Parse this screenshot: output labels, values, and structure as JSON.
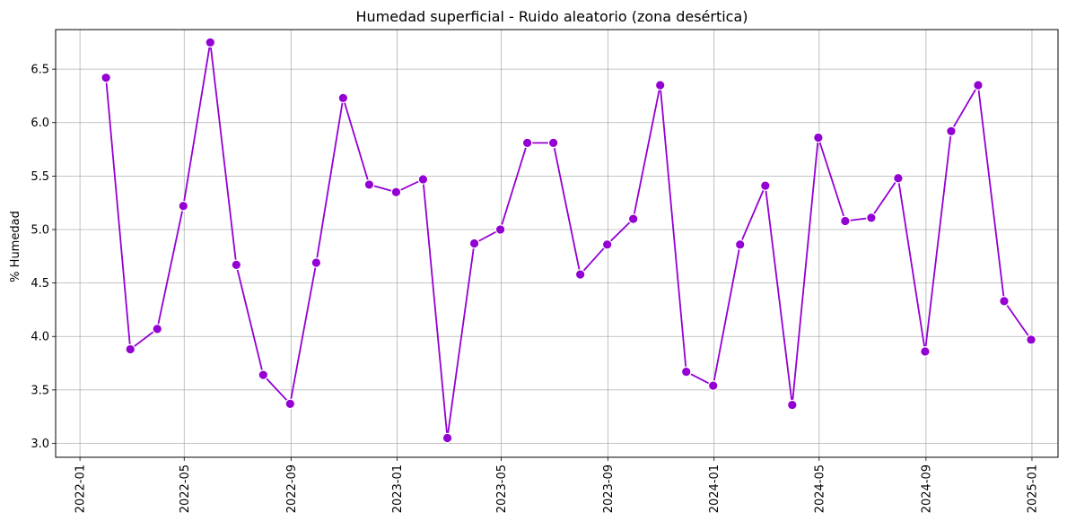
{
  "chart_data": {
    "type": "line",
    "title": "Humedad superficial - Ruido aleatorio (zona desértica)",
    "xlabel": "",
    "ylabel": "% Humedad",
    "grid": true,
    "line_color": "#9400d3",
    "x_ticks": [
      "2022-01",
      "2022-05",
      "2022-09",
      "2023-01",
      "2023-05",
      "2023-09",
      "2024-01",
      "2024-05",
      "2024-09",
      "2025-01"
    ],
    "y_ticks": [
      3.0,
      3.5,
      4.0,
      4.5,
      5.0,
      5.5,
      6.0,
      6.5
    ],
    "ylim": [
      2.87,
      6.87
    ],
    "xlim": [
      "2021-12-04",
      "2025-01-31"
    ],
    "x": [
      "2022-01-31",
      "2022-02-28",
      "2022-03-31",
      "2022-04-30",
      "2022-05-31",
      "2022-06-30",
      "2022-07-31",
      "2022-08-31",
      "2022-09-30",
      "2022-10-31",
      "2022-11-30",
      "2022-12-31",
      "2023-01-31",
      "2023-02-28",
      "2023-03-31",
      "2023-04-30",
      "2023-05-31",
      "2023-06-30",
      "2023-07-31",
      "2023-08-31",
      "2023-09-30",
      "2023-10-31",
      "2023-11-30",
      "2023-12-31",
      "2024-01-31",
      "2024-02-29",
      "2024-03-31",
      "2024-04-30",
      "2024-05-31",
      "2024-06-30",
      "2024-07-31",
      "2024-08-31",
      "2024-09-30",
      "2024-10-31",
      "2024-11-30",
      "2024-12-31"
    ],
    "values": [
      6.42,
      3.88,
      4.07,
      5.22,
      6.75,
      4.67,
      3.64,
      3.37,
      4.69,
      6.23,
      5.42,
      5.35,
      5.47,
      3.05,
      4.87,
      5.0,
      5.81,
      5.81,
      4.58,
      4.86,
      5.1,
      6.35,
      3.67,
      3.54,
      4.86,
      5.41,
      3.36,
      5.86,
      5.08,
      5.11,
      5.48,
      3.86,
      5.92,
      6.35,
      4.33,
      3.97
    ]
  }
}
